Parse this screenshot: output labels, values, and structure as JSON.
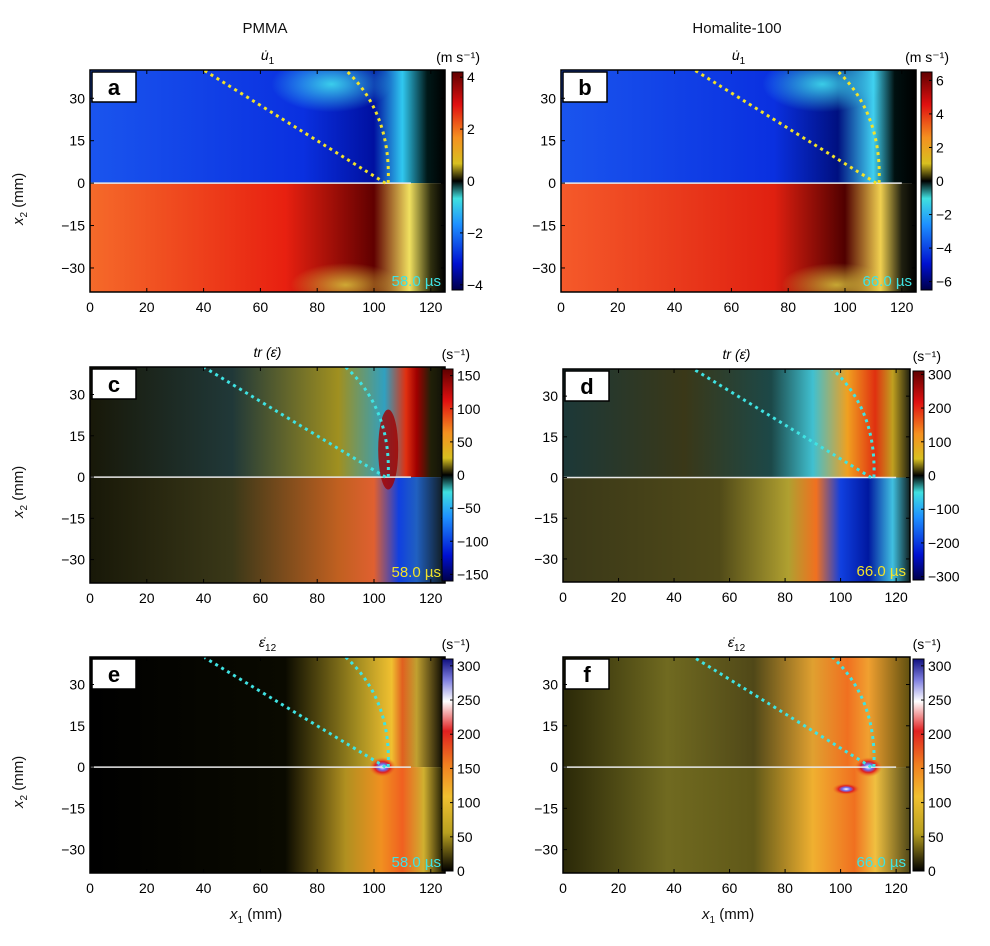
{
  "figure": {
    "column_titles": [
      "PMMA",
      "Homalite-100"
    ],
    "x_axis_label_main": "x",
    "x_axis_label_sub": "1",
    "x_axis_label_unit": " (mm)",
    "y_axis_label_main": "x",
    "y_axis_label_sub": "2",
    "y_axis_label_unit": " (mm)"
  },
  "chart_data": [
    {
      "type": "heatmap",
      "panel": "a",
      "material": "PMMA",
      "quantity": "u̇",
      "quantity_sub": "1",
      "unit": "(m s⁻¹)",
      "time_label": "58.0 µs",
      "time_color": "#3fe3e3",
      "guide_color": "#f2e22a",
      "colormap": "diverging",
      "xlim": [
        0,
        125
      ],
      "ylim": [
        -38.5,
        40
      ],
      "xticks": [
        "0",
        "20",
        "40",
        "60",
        "80",
        "100",
        "120"
      ],
      "yticks": [
        "30",
        "15",
        "0",
        "−15",
        "−30"
      ],
      "cbar_range": [
        -4.2,
        4.2
      ],
      "cbar_ticks": [
        "4",
        "2",
        "0",
        "−2",
        "−4"
      ],
      "cbar_tick_values": [
        4,
        2,
        0,
        -2,
        -4
      ]
    },
    {
      "type": "heatmap",
      "panel": "b",
      "material": "Homalite-100",
      "quantity": "u̇",
      "quantity_sub": "1",
      "unit": "(m s⁻¹)",
      "time_label": "66.0 µs",
      "time_color": "#3fe3e3",
      "guide_color": "#f2e22a",
      "colormap": "diverging",
      "xlim": [
        0,
        125
      ],
      "ylim": [
        -38.5,
        40
      ],
      "xticks": [
        "0",
        "20",
        "40",
        "60",
        "80",
        "100",
        "120"
      ],
      "yticks": [
        "30",
        "15",
        "0",
        "−15",
        "−30"
      ],
      "cbar_range": [
        -6.5,
        6.5
      ],
      "cbar_ticks": [
        "6",
        "4",
        "2",
        "0",
        "−2",
        "−4",
        "−6"
      ],
      "cbar_tick_values": [
        6,
        4,
        2,
        0,
        -2,
        -4,
        -6
      ]
    },
    {
      "type": "heatmap",
      "panel": "c",
      "material": "PMMA",
      "quantity": "tr (ε̇)",
      "quantity_sub": "",
      "unit": "(s⁻¹)",
      "time_label": "58.0 µs",
      "time_color": "#f2e22a",
      "guide_color": "#3fe3e3",
      "colormap": "diverging",
      "xlim": [
        0,
        125
      ],
      "ylim": [
        -38.5,
        40
      ],
      "xticks": [
        "0",
        "20",
        "40",
        "60",
        "80",
        "100",
        "120"
      ],
      "yticks": [
        "30",
        "15",
        "0",
        "−15",
        "−30"
      ],
      "cbar_range": [
        -160,
        160
      ],
      "cbar_ticks": [
        "150",
        "100",
        "50",
        "0",
        "−50",
        "−100",
        "−150"
      ],
      "cbar_tick_values": [
        150,
        100,
        50,
        0,
        -50,
        -100,
        -150
      ]
    },
    {
      "type": "heatmap",
      "panel": "d",
      "material": "Homalite-100",
      "quantity": "tr (ε̇)",
      "quantity_sub": "",
      "unit": "(s⁻¹)",
      "time_label": "66.0 µs",
      "time_color": "#f2e22a",
      "guide_color": "#3fe3e3",
      "colormap": "diverging",
      "xlim": [
        0,
        125
      ],
      "ylim": [
        -38.5,
        40
      ],
      "xticks": [
        "0",
        "20",
        "40",
        "60",
        "80",
        "100",
        "120"
      ],
      "yticks": [
        "30",
        "15",
        "0",
        "−15",
        "−30"
      ],
      "cbar_range": [
        -310,
        310
      ],
      "cbar_ticks": [
        "300",
        "200",
        "100",
        "0",
        "−100",
        "−200",
        "−300"
      ],
      "cbar_tick_values": [
        300,
        200,
        100,
        0,
        -100,
        -200,
        -300
      ]
    },
    {
      "type": "heatmap",
      "panel": "e",
      "material": "PMMA",
      "quantity": "ε̇",
      "quantity_sub": "12",
      "unit": "(s⁻¹)",
      "time_label": "58.0 µs",
      "time_color": "#3fe3e3",
      "guide_color": "#3fe3e3",
      "colormap": "hot",
      "xlim": [
        0,
        125
      ],
      "ylim": [
        -38.5,
        40
      ],
      "xticks": [
        "0",
        "20",
        "40",
        "60",
        "80",
        "100",
        "120"
      ],
      "yticks": [
        "30",
        "15",
        "0",
        "−15",
        "−30"
      ],
      "cbar_range": [
        0,
        310
      ],
      "cbar_ticks": [
        "300",
        "250",
        "200",
        "150",
        "100",
        "50",
        "0"
      ],
      "cbar_tick_values": [
        300,
        250,
        200,
        150,
        100,
        50,
        0
      ]
    },
    {
      "type": "heatmap",
      "panel": "f",
      "material": "Homalite-100",
      "quantity": "ε̇",
      "quantity_sub": "12",
      "unit": "(s⁻¹)",
      "time_label": "66.0 µs",
      "time_color": "#3fe3e3",
      "guide_color": "#3fe3e3",
      "colormap": "hot",
      "xlim": [
        0,
        125
      ],
      "ylim": [
        -38.5,
        40
      ],
      "xticks": [
        "0",
        "20",
        "40",
        "60",
        "80",
        "100",
        "120"
      ],
      "yticks": [
        "30",
        "15",
        "0",
        "−15",
        "−30"
      ],
      "cbar_range": [
        0,
        310
      ],
      "cbar_ticks": [
        "300",
        "250",
        "200",
        "150",
        "100",
        "50",
        "0"
      ],
      "cbar_tick_values": [
        300,
        250,
        200,
        150,
        100,
        50,
        0
      ]
    }
  ]
}
